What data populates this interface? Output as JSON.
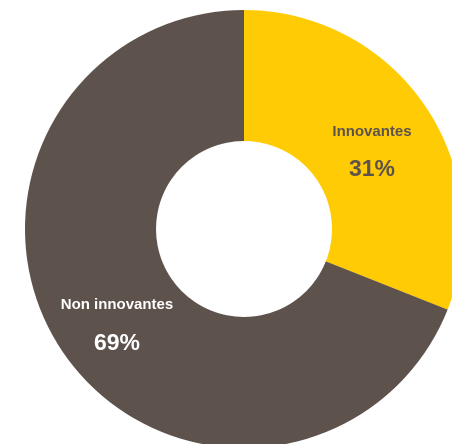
{
  "chart_data": {
    "type": "pie",
    "donut": true,
    "categories": [
      "Innovantes",
      "Non innovantes"
    ],
    "values": [
      31,
      69
    ],
    "labels": [
      "31%",
      "69%"
    ],
    "colors": [
      "#FFCB05",
      "#5E524D"
    ],
    "label_colors": [
      "#5E524D",
      "#FFFFFF"
    ],
    "title": "",
    "legend": "none"
  }
}
